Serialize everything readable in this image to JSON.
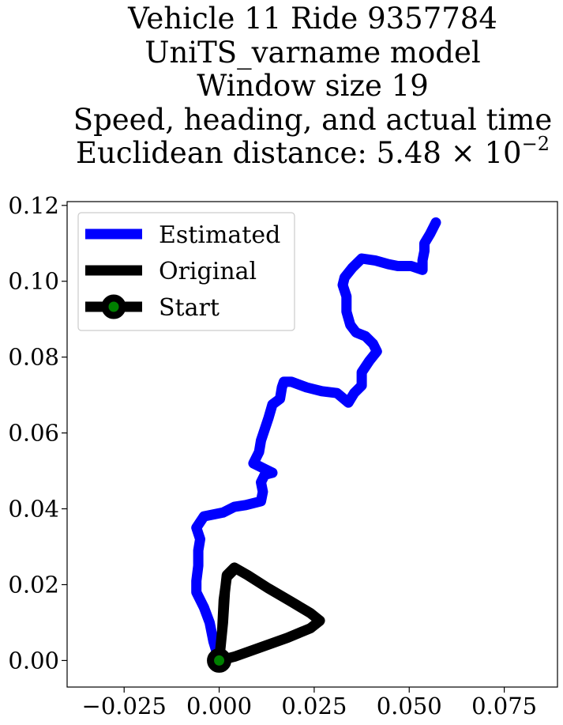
{
  "chart_data": {
    "type": "line",
    "title_lines": [
      "Vehicle 11 Ride 9357784",
      "UniTS_varname model",
      "Window size 19",
      "Speed, heading, and actual time",
      "Euclidean distance: 5.48 × 10"
    ],
    "title_exponent": "−2",
    "xlabel": "",
    "ylabel": "",
    "xlim": [
      -0.04,
      0.089
    ],
    "ylim": [
      -0.007,
      0.121
    ],
    "xticks": [
      -0.025,
      0.0,
      0.025,
      0.05,
      0.075
    ],
    "xtick_labels": [
      "−0.025",
      "0.000",
      "0.025",
      "0.050",
      "0.075"
    ],
    "yticks": [
      0.0,
      0.02,
      0.04,
      0.06,
      0.08,
      0.1,
      0.12
    ],
    "ytick_labels": [
      "0.00",
      "0.02",
      "0.04",
      "0.06",
      "0.08",
      "0.10",
      "0.12"
    ],
    "grid": false,
    "legend_position": "upper-left",
    "series": [
      {
        "name": "Estimated",
        "color": "#0000ff",
        "points": [
          [
            0.0,
            0.0
          ],
          [
            -0.0015,
            0.005
          ],
          [
            -0.0025,
            0.01
          ],
          [
            -0.004,
            0.014
          ],
          [
            -0.006,
            0.018
          ],
          [
            -0.006,
            0.021
          ],
          [
            -0.0055,
            0.025
          ],
          [
            -0.0055,
            0.029
          ],
          [
            -0.005,
            0.032
          ],
          [
            -0.006,
            0.035
          ],
          [
            -0.004,
            0.038
          ],
          [
            0.001,
            0.039
          ],
          [
            0.004,
            0.0405
          ],
          [
            0.007,
            0.041
          ],
          [
            0.011,
            0.042
          ],
          [
            0.0115,
            0.0445
          ],
          [
            0.011,
            0.047
          ],
          [
            0.012,
            0.049
          ],
          [
            0.014,
            0.0495
          ],
          [
            0.012,
            0.0505
          ],
          [
            0.009,
            0.052
          ],
          [
            0.0105,
            0.055
          ],
          [
            0.011,
            0.058
          ],
          [
            0.012,
            0.061
          ],
          [
            0.013,
            0.064
          ],
          [
            0.014,
            0.0675
          ],
          [
            0.016,
            0.069
          ],
          [
            0.0165,
            0.072
          ],
          [
            0.017,
            0.0735
          ],
          [
            0.019,
            0.0735
          ],
          [
            0.023,
            0.072
          ],
          [
            0.027,
            0.071
          ],
          [
            0.031,
            0.0705
          ],
          [
            0.034,
            0.068
          ],
          [
            0.0355,
            0.0705
          ],
          [
            0.0375,
            0.0725
          ],
          [
            0.0375,
            0.076
          ],
          [
            0.0395,
            0.079
          ],
          [
            0.0415,
            0.0815
          ],
          [
            0.0405,
            0.0835
          ],
          [
            0.0385,
            0.0855
          ],
          [
            0.036,
            0.0865
          ],
          [
            0.0345,
            0.0885
          ],
          [
            0.0335,
            0.092
          ],
          [
            0.0335,
            0.096
          ],
          [
            0.0325,
            0.099
          ],
          [
            0.033,
            0.101
          ],
          [
            0.035,
            0.1035
          ],
          [
            0.0375,
            0.106
          ],
          [
            0.041,
            0.1055
          ],
          [
            0.0445,
            0.1045
          ],
          [
            0.047,
            0.104
          ],
          [
            0.0505,
            0.104
          ],
          [
            0.0535,
            0.103
          ],
          [
            0.0535,
            0.1055
          ],
          [
            0.054,
            0.108
          ],
          [
            0.054,
            0.11
          ],
          [
            0.0555,
            0.1125
          ],
          [
            0.057,
            0.1155
          ]
        ]
      },
      {
        "name": "Original",
        "color": "#000000",
        "points": [
          [
            0.0,
            0.0
          ],
          [
            0.001,
            0.01
          ],
          [
            0.0015,
            0.018
          ],
          [
            0.002,
            0.0225
          ],
          [
            0.004,
            0.0245
          ],
          [
            0.0075,
            0.0225
          ],
          [
            0.013,
            0.019
          ],
          [
            0.019,
            0.0155
          ],
          [
            0.024,
            0.0125
          ],
          [
            0.0265,
            0.0105
          ],
          [
            0.024,
            0.0085
          ],
          [
            0.018,
            0.006
          ],
          [
            0.011,
            0.0035
          ],
          [
            0.004,
            0.001
          ],
          [
            0.0,
            0.0
          ],
          [
            0.0008,
            0.008
          ],
          [
            0.0012,
            0.016
          ],
          [
            0.002,
            0.022
          ],
          [
            0.0035,
            0.0235
          ]
        ]
      }
    ],
    "start_marker": {
      "name": "Start",
      "point": [
        0.0,
        0.0
      ],
      "face_color": "#008000",
      "edge_color": "#000000"
    }
  }
}
